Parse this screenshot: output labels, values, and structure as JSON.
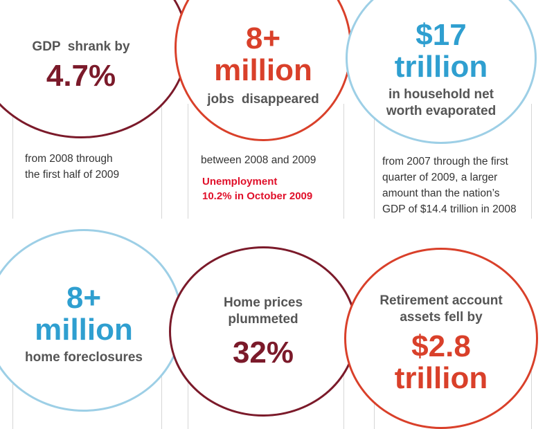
{
  "stats": [
    {
      "pre": "GDP  shrank by",
      "value": "4.7%",
      "desc": [
        "from 2008 through",
        "the first half of 2009"
      ]
    },
    {
      "value_line1": "8+",
      "value_line2": "million",
      "post": "jobs  disappeared",
      "desc": [
        "between 2008 and 2009"
      ],
      "note": [
        "Unemployment",
        "10.2% in October 2009"
      ]
    },
    {
      "value_line1": "$17",
      "value_line2": "trillion",
      "post_line1": "in household net",
      "post_line2": "worth evaporated",
      "desc": [
        "from 2007 through the first",
        "quarter of 2009, a larger",
        "amount than the nation’s",
        "GDP of $14.4 trillion in 2008"
      ]
    },
    {
      "value_line1": "8+",
      "value_line2": "million",
      "post": "home foreclosures"
    },
    {
      "pre_line1": "Home prices",
      "pre_line2": "plummeted",
      "value": "32%"
    },
    {
      "pre_line1": "Retirement account",
      "pre_line2": "assets fell by",
      "value_line1": "$2.8",
      "value_line2": "trillion"
    }
  ],
  "colors": {
    "maroon": "#7b1a2a",
    "red": "#d9402a",
    "blue_text": "#2f9fd0",
    "blue_ring": "#9dcfe6",
    "note_red": "#e0102a"
  }
}
